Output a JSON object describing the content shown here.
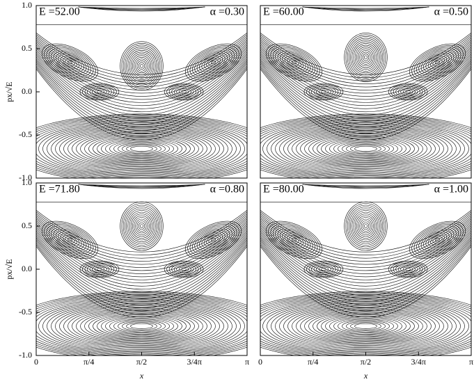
{
  "chart_data": [
    {
      "type": "poincare",
      "annotations": [
        "E =52.00",
        "α =0.30"
      ],
      "ylabel": "px/√E",
      "xlim": [
        0,
        3.141593
      ],
      "ylim": [
        -1,
        1
      ],
      "yticks": [
        {
          "value": 1,
          "label": "1.0"
        },
        {
          "value": 0.5,
          "label": "0.5"
        },
        {
          "value": 0,
          "label": "0.0"
        },
        {
          "value": -0.5,
          "label": "-0.5"
        },
        {
          "value": -1,
          "label": "-1.0"
        }
      ]
    },
    {
      "type": "poincare",
      "annotations": [
        "E =60.00",
        "α =0.50"
      ],
      "xlim": [
        0,
        3.141593
      ],
      "ylim": [
        -1,
        1
      ]
    },
    {
      "type": "poincare",
      "annotations": [
        "E =71.80",
        "α =0.80"
      ],
      "ylabel": "px/√E",
      "xlabel": "x",
      "xlim": [
        0,
        3.141593
      ],
      "ylim": [
        -1,
        1
      ],
      "xticks": [
        0,
        {
          "value": 0.785398,
          "label": "π/4"
        },
        {
          "value": 1.570796,
          "label": "π/2"
        },
        {
          "value": 2.356194,
          "label": "3/4π"
        },
        {
          "value": 3.141593,
          "label": "π"
        }
      ],
      "yticks": [
        {
          "value": 1,
          "label": "1.0"
        },
        {
          "value": 0.5,
          "label": "0.5"
        },
        {
          "value": 0,
          "label": "0.0"
        },
        {
          "value": -0.5,
          "label": "-0.5"
        },
        {
          "value": -1,
          "label": "-1.0"
        }
      ]
    },
    {
      "type": "poincare",
      "annotations": [
        "E =80.00",
        "α =1.00"
      ],
      "xlabel": "x",
      "xlim": [
        0,
        3.141593
      ],
      "ylim": [
        -1,
        1
      ],
      "xticks": [
        0,
        {
          "value": 0.785398,
          "label": "π/4"
        },
        {
          "value": 1.570796,
          "label": "π/2"
        },
        {
          "value": 2.356194,
          "label": "3/4π"
        },
        {
          "value": 3.141593,
          "label": "π"
        }
      ]
    }
  ]
}
